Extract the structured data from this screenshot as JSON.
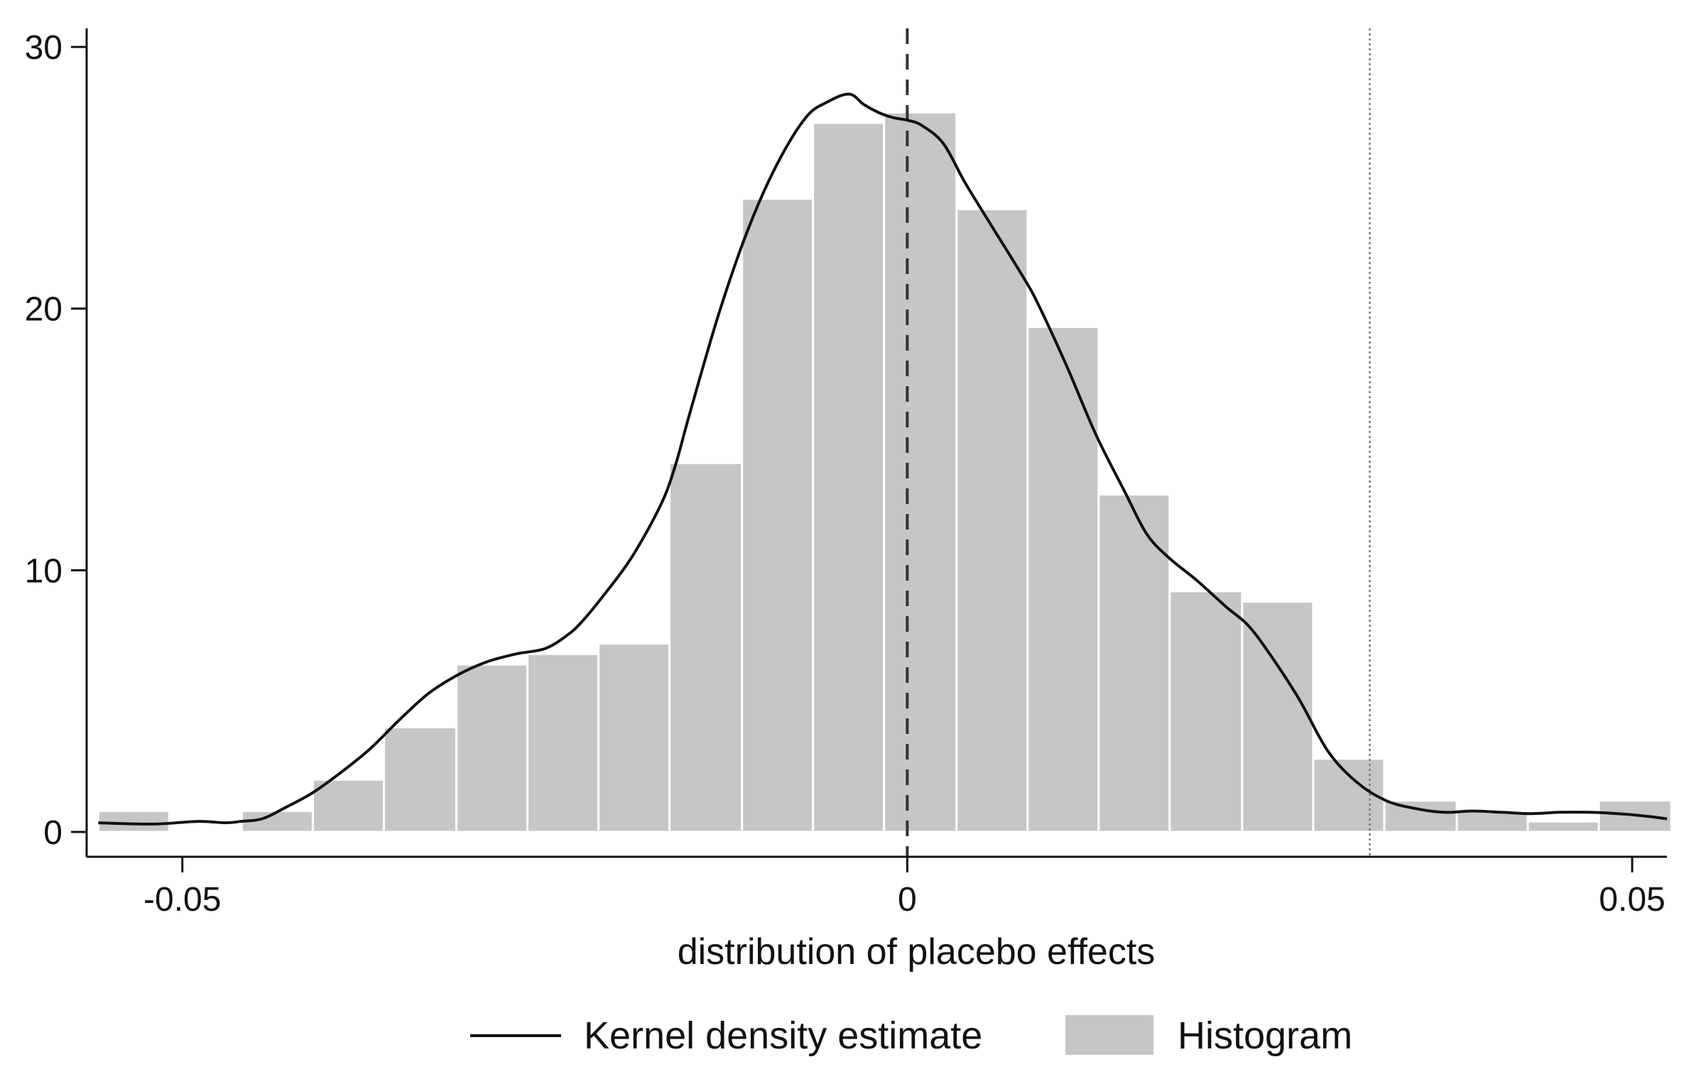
{
  "chart_data": {
    "type": "bar",
    "title": "",
    "xlabel": "distribution of placebo effects",
    "ylabel": "",
    "xlim": [
      -0.0566,
      0.0524
    ],
    "ylim": [
      -0.95,
      30.6
    ],
    "grid": false,
    "x_ticks": [
      {
        "value": -0.05,
        "label": "-0.05"
      },
      {
        "value": 0,
        "label": "0"
      },
      {
        "value": 0.05,
        "label": "0.05"
      }
    ],
    "y_ticks": [
      {
        "value": 0,
        "label": "0"
      },
      {
        "value": 10,
        "label": "10"
      },
      {
        "value": 20,
        "label": "20"
      },
      {
        "value": 30,
        "label": "30"
      }
    ],
    "histogram": {
      "name": "Histogram",
      "color": "#c6c6c6",
      "bins": [
        {
          "x0": -0.0558,
          "x1": -0.0509,
          "density": 0.8
        },
        {
          "x0": -0.0509,
          "x1": -0.0459,
          "density": 0.0
        },
        {
          "x0": -0.0459,
          "x1": -0.041,
          "density": 0.8
        },
        {
          "x0": -0.041,
          "x1": -0.0361,
          "density": 2.0
        },
        {
          "x0": -0.0361,
          "x1": -0.0311,
          "density": 4.0
        },
        {
          "x0": -0.0311,
          "x1": -0.0262,
          "density": 6.4
        },
        {
          "x0": -0.0262,
          "x1": -0.0213,
          "density": 6.8
        },
        {
          "x0": -0.0213,
          "x1": -0.0164,
          "density": 7.2
        },
        {
          "x0": -0.0164,
          "x1": -0.0114,
          "density": 14.1
        },
        {
          "x0": -0.0114,
          "x1": -0.0065,
          "density": 24.2
        },
        {
          "x0": -0.0065,
          "x1": -0.0016,
          "density": 27.1
        },
        {
          "x0": -0.0016,
          "x1": 0.0034,
          "density": 27.5
        },
        {
          "x0": 0.0034,
          "x1": 0.0083,
          "density": 23.8
        },
        {
          "x0": 0.0083,
          "x1": 0.0132,
          "density": 19.3
        },
        {
          "x0": 0.0132,
          "x1": 0.0181,
          "density": 12.9
        },
        {
          "x0": 0.0181,
          "x1": 0.0231,
          "density": 9.2
        },
        {
          "x0": 0.0231,
          "x1": 0.028,
          "density": 8.8
        },
        {
          "x0": 0.028,
          "x1": 0.0329,
          "density": 2.8
        },
        {
          "x0": 0.0329,
          "x1": 0.0379,
          "density": 1.2
        },
        {
          "x0": 0.0379,
          "x1": 0.0428,
          "density": 0.8
        },
        {
          "x0": 0.0428,
          "x1": 0.0477,
          "density": 0.4
        },
        {
          "x0": 0.0477,
          "x1": 0.0527,
          "density": 1.2
        }
      ]
    },
    "kernel_density": {
      "name": "Kernel density estimate",
      "color": "#111111",
      "x": [
        -0.0558,
        -0.052,
        -0.049,
        -0.047,
        -0.046,
        -0.0445,
        -0.043,
        -0.041,
        -0.039,
        -0.037,
        -0.035,
        -0.033,
        -0.031,
        -0.029,
        -0.027,
        -0.025,
        -0.0235,
        -0.0225,
        -0.021,
        -0.019,
        -0.017,
        -0.016,
        -0.015,
        -0.013,
        -0.011,
        -0.009,
        -0.007,
        -0.0055,
        -0.004,
        -0.003,
        -0.002,
        -0.001,
        0.0,
        0.001,
        0.0025,
        0.004,
        0.006,
        0.008,
        0.009,
        0.011,
        0.013,
        0.015,
        0.0165,
        0.018,
        0.02,
        0.022,
        0.0235,
        0.025,
        0.027,
        0.029,
        0.031,
        0.033,
        0.035,
        0.037,
        0.039,
        0.041,
        0.043,
        0.045,
        0.047,
        0.049,
        0.051,
        0.0524
      ],
      "y": [
        0.35,
        0.3,
        0.4,
        0.35,
        0.4,
        0.5,
        0.9,
        1.5,
        2.3,
        3.2,
        4.3,
        5.3,
        6.0,
        6.5,
        6.8,
        7.0,
        7.5,
        8.0,
        9.0,
        10.5,
        12.5,
        14.0,
        16.0,
        19.8,
        23.0,
        25.5,
        27.3,
        27.9,
        28.2,
        27.8,
        27.5,
        27.3,
        27.2,
        27.0,
        26.3,
        24.8,
        23.0,
        21.2,
        20.2,
        17.8,
        15.2,
        13.0,
        11.4,
        10.5,
        9.6,
        8.6,
        7.9,
        6.8,
        5.1,
        3.1,
        1.9,
        1.2,
        0.9,
        0.75,
        0.8,
        0.75,
        0.7,
        0.75,
        0.75,
        0.7,
        0.6,
        0.5
      ]
    },
    "reference_lines": [
      {
        "name": "zero",
        "x": 0,
        "style": "dashed",
        "color": "#333333"
      },
      {
        "name": "actual-estimate",
        "x": 0.0319,
        "style": "dotted",
        "color": "#777777"
      }
    ],
    "legend": {
      "position": "bottom",
      "entries": [
        {
          "label": "Kernel density estimate",
          "kind": "line"
        },
        {
          "label": "Histogram",
          "kind": "patch"
        }
      ]
    }
  }
}
